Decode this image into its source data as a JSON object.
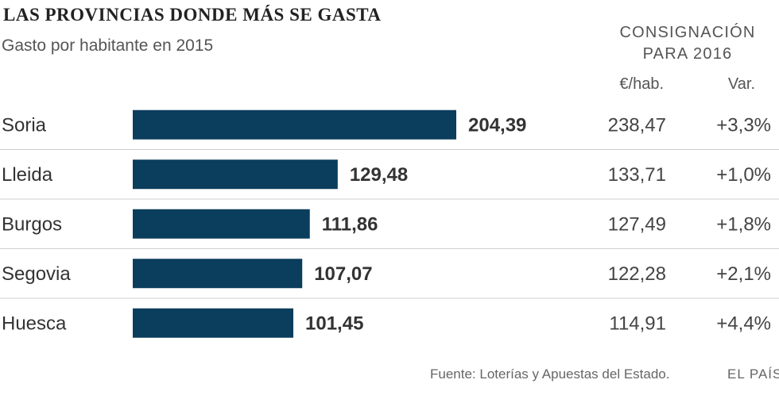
{
  "header": {
    "title": "LAS PROVINCIAS DONDE MÁS SE GASTA",
    "subtitle": "Gasto por habitante en 2015",
    "side_title_line1": "CONSIGNACIÓN",
    "side_title_line2": "PARA 2016",
    "col_eur": "€/hab.",
    "col_var": "Var."
  },
  "chart_data": {
    "type": "bar",
    "orientation": "horizontal",
    "title": "LAS PROVINCIAS DONDE MÁS SE GASTA",
    "subtitle": "Gasto por habitante en 2015",
    "categories": [
      "Soria",
      "Lleida",
      "Burgos",
      "Segovia",
      "Huesca"
    ],
    "values": [
      204.39,
      129.48,
      111.86,
      107.07,
      101.45
    ],
    "value_labels": [
      "204,39",
      "129,48",
      "111,86",
      "107,07",
      "101,45"
    ],
    "table": {
      "title": "CONSIGNACIÓN PARA 2016",
      "columns": [
        "€/hab.",
        "Var."
      ],
      "eur_hab": [
        "238,47",
        "133,71",
        "127,49",
        "122,28",
        "114,91"
      ],
      "var": [
        "+3,3%",
        "+1,0%",
        "+1,8%",
        "+2,1%",
        "+4,4%"
      ]
    },
    "bar_color": "#0b3d5c",
    "grid": false,
    "xlim": [
      0,
      204.39
    ]
  },
  "footer": {
    "source": "Fuente: Loterías y Apuestas del Estado.",
    "brand": "EL PAÍS"
  }
}
